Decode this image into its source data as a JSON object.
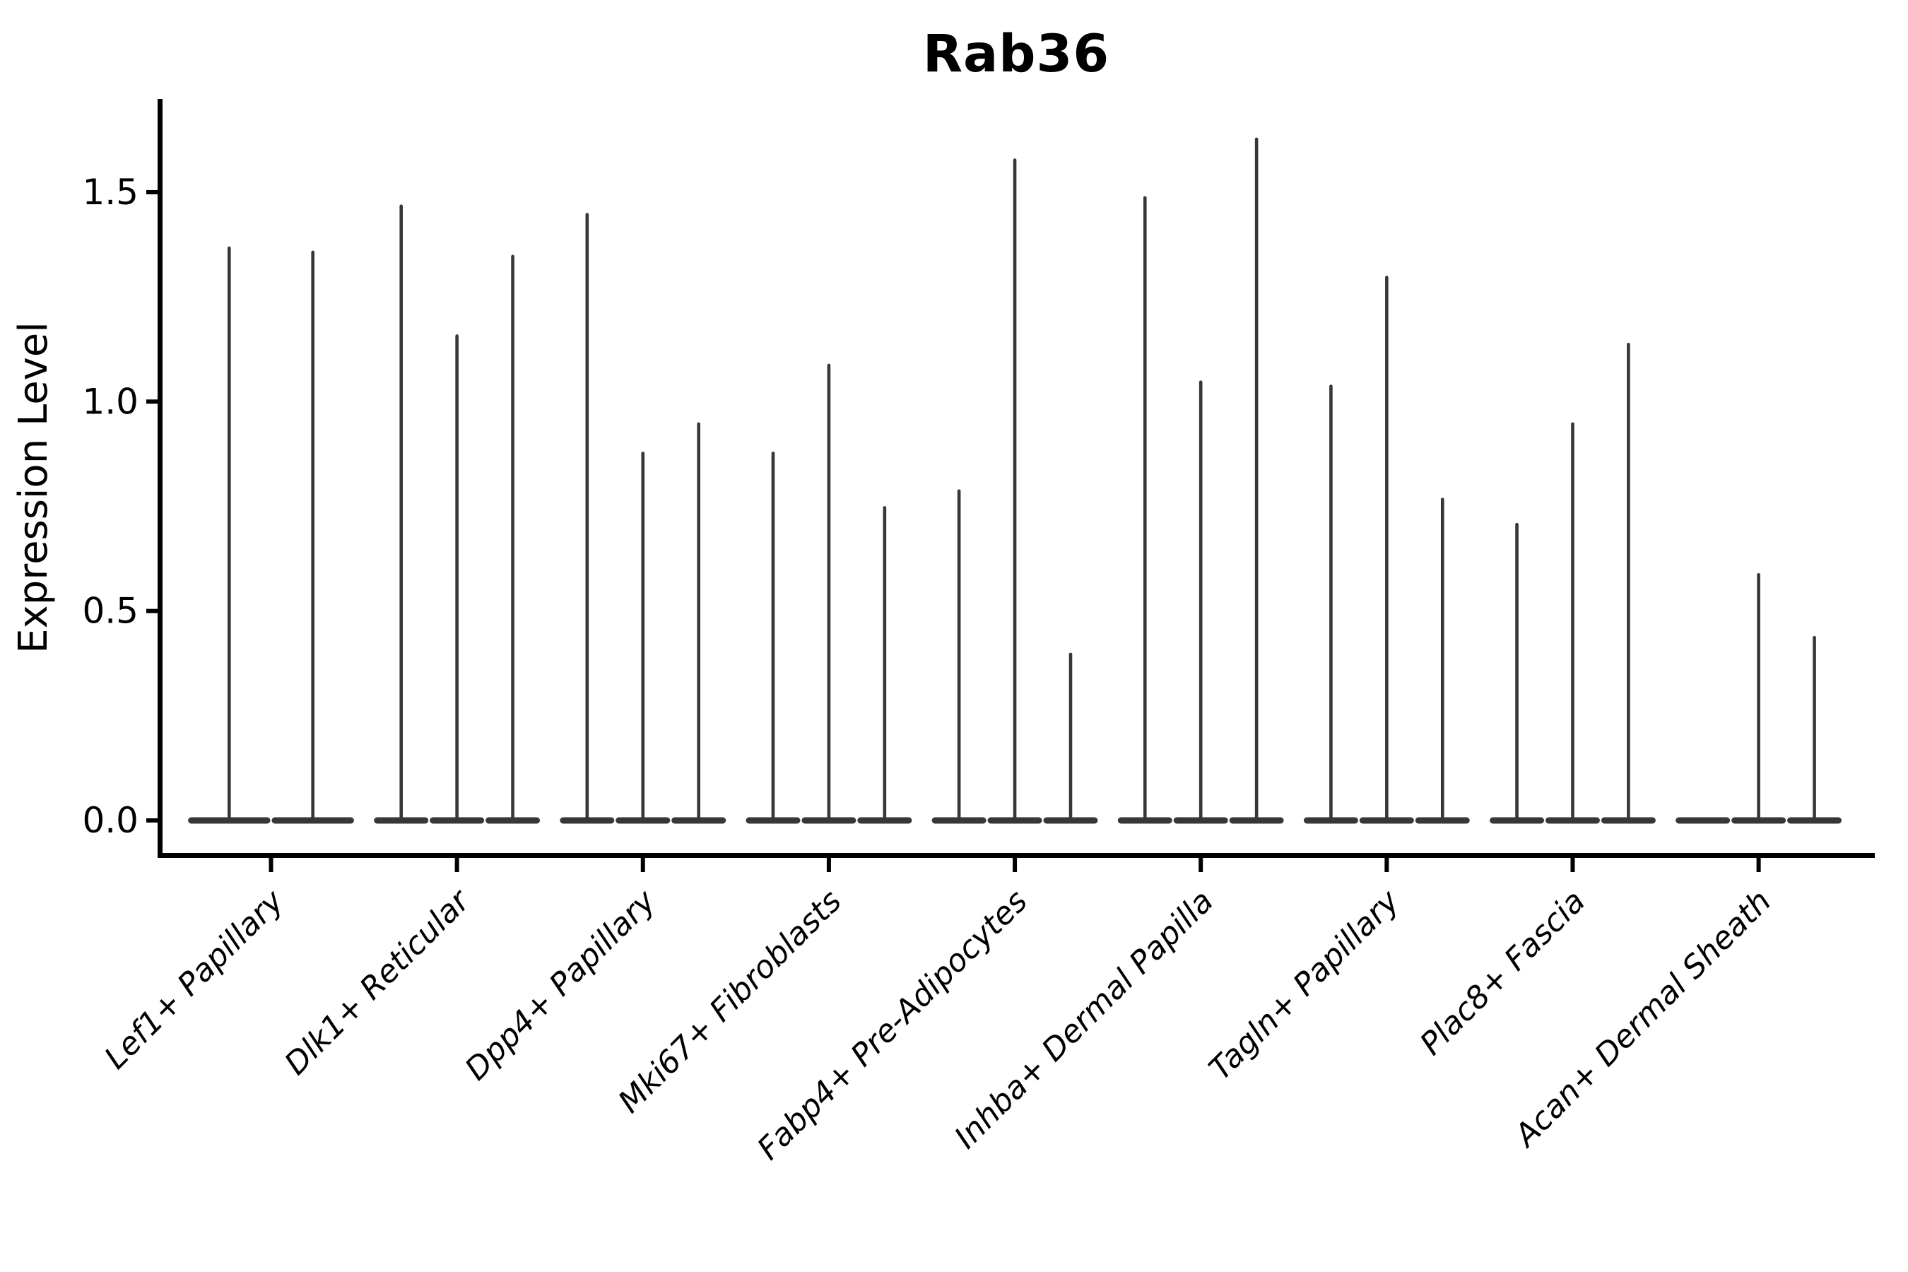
{
  "title": "Rab36",
  "axes": {
    "ylabel": "Expression Level",
    "ytick_labels": [
      "0.0",
      "0.5",
      "1.0",
      "1.5"
    ]
  },
  "style": {
    "violin_color": "#373737",
    "axis_color": "#000000",
    "background": "#ffffff"
  },
  "chart_data": {
    "type": "violin",
    "title": "Rab36",
    "xlabel": "",
    "ylabel": "Expression Level",
    "ylim": [
      -0.09,
      1.72
    ],
    "yticks": [
      0.0,
      0.5,
      1.0,
      1.5
    ],
    "grid": false,
    "legend": "none",
    "orientation": "vertical",
    "description": "Narrow spike-shaped violins (most mass at 0) grouped per cell type; peak = maximum expression value reached by each violin; violins with peak 0 are flat at baseline",
    "categories": [
      "Lef1+ Papillary",
      "Dlk1+ Reticular",
      "Dpp4+ Papillary",
      "Mki67+ Fibroblasts",
      "Fabp4+ Pre-Adipocytes",
      "Inhba+ Dermal Papilla",
      "Tagln+ Papillary",
      "Plac8+ Fascia",
      "Acan+ Dermal Sheath"
    ],
    "groups": [
      {
        "category": "Lef1+ Papillary",
        "violin_peaks": [
          1.37,
          1.36
        ]
      },
      {
        "category": "Dlk1+ Reticular",
        "violin_peaks": [
          1.47,
          1.16,
          1.35
        ]
      },
      {
        "category": "Dpp4+ Papillary",
        "violin_peaks": [
          1.45,
          0.88,
          0.95
        ]
      },
      {
        "category": "Mki67+ Fibroblasts",
        "violin_peaks": [
          0.88,
          1.09,
          0.75
        ]
      },
      {
        "category": "Fabp4+ Pre-Adipocytes",
        "violin_peaks": [
          0.79,
          1.58,
          0.4
        ]
      },
      {
        "category": "Inhba+ Dermal Papilla",
        "violin_peaks": [
          1.49,
          1.05,
          1.63
        ]
      },
      {
        "category": "Tagln+ Papillary",
        "violin_peaks": [
          1.04,
          1.3,
          0.77
        ]
      },
      {
        "category": "Plac8+ Fascia",
        "violin_peaks": [
          0.71,
          0.95,
          1.14
        ]
      },
      {
        "category": "Acan+ Dermal Sheath",
        "violin_peaks": [
          0.0,
          0.59,
          0.44
        ]
      }
    ]
  }
}
